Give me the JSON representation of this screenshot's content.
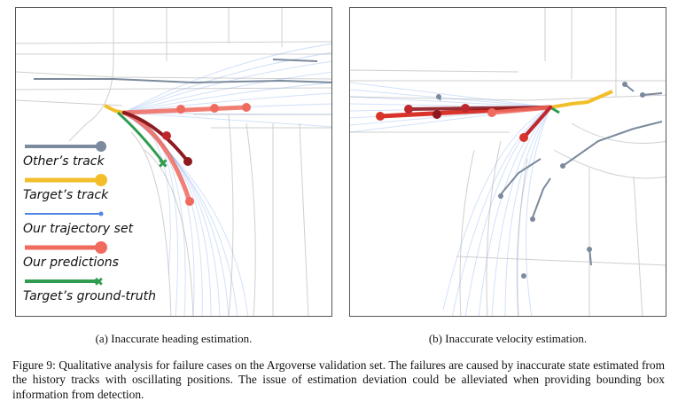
{
  "figure": {
    "subcaption_a": "(a) Inaccurate heading estimation.",
    "subcaption_b": "(b) Inaccurate velocity estimation.",
    "caption": "Figure 9: Qualitative analysis for failure cases on the Argoverse validation set. The failures are caused by inaccurate state estimated from the history tracks with oscillating positions. The issue of estimation deviation could be alleviated when providing bounding box information from detection."
  },
  "legend": [
    {
      "label": "Other’s track",
      "color": "#7b8a9c",
      "marker": "dot"
    },
    {
      "label": "Target’s track",
      "color": "#f2bf2a",
      "marker": "dot"
    },
    {
      "label": "Our trajectory set",
      "color": "#4f86e6",
      "marker": "small-dot"
    },
    {
      "label": "Our predictions",
      "color": "#f06a5e",
      "marker": "dot"
    },
    {
      "label": "Target’s ground-truth",
      "color": "#2f9c4f",
      "marker": "cross"
    }
  ],
  "colors": {
    "others": "#7b8a9c",
    "target": "#f2bf2a",
    "trajectory_set": "#6f9ef0",
    "prediction_light": "#f06a5e",
    "prediction_mid": "#d8342c",
    "prediction_dark": "#8e1a1f",
    "ground_truth": "#2f9c4f",
    "map_lines": "#c9c9c9"
  }
}
